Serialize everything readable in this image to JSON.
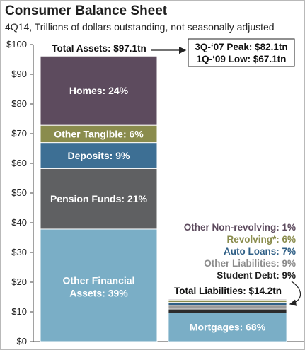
{
  "header": {
    "title": "Consumer Balance Sheet",
    "subtitle": "4Q14, Trillions of dollars outstanding, not seasonally adjusted"
  },
  "chart_data": {
    "type": "bar",
    "stacked": true,
    "title": "Consumer Balance Sheet",
    "subtitle": "4Q14, Trillions of dollars outstanding, not seasonally adjusted",
    "ylim": [
      0,
      100
    ],
    "y_ticks": [
      0,
      10,
      20,
      30,
      40,
      50,
      60,
      70,
      80,
      90,
      100
    ],
    "y_tick_labels": [
      "$0",
      "$10",
      "$20",
      "$30",
      "$40",
      "$50",
      "$60",
      "$70",
      "$80",
      "$90",
      "$100"
    ],
    "grid": false,
    "assets": {
      "total": 97.1,
      "total_label": "Total Assets: $97.1tn",
      "segments": [
        {
          "name": "Other Financial Assets",
          "label": "Other Financial Assets: 39%",
          "pct": 39,
          "color": "#7aaec6"
        },
        {
          "name": "Pension Funds",
          "label": "Pension Funds: 21%",
          "pct": 21,
          "color": "#5f6062"
        },
        {
          "name": "Deposits",
          "label": "Deposits: 9%",
          "pct": 9,
          "color": "#3d6f94"
        },
        {
          "name": "Other Tangible",
          "label": "Other Tangible: 6%",
          "pct": 6,
          "color": "#8a8c4d"
        },
        {
          "name": "Homes",
          "label": "Homes: 24%",
          "pct": 24,
          "color": "#5d4b5e"
        }
      ]
    },
    "liabilities": {
      "total": 14.2,
      "total_label": "Total Liabilities: $14.2tn",
      "segments": [
        {
          "name": "Mortgages",
          "label": "Mortgages: 68%",
          "pct": 68,
          "color": "#7aaec6"
        },
        {
          "name": "Student Debt",
          "label": "Student Debt: 9%",
          "pct": 9,
          "color": "#2b2b2b"
        },
        {
          "name": "Other Liabilities",
          "label": "Other Liabilities: 9%",
          "pct": 9,
          "color": "#9a9a9a"
        },
        {
          "name": "Auto Loans",
          "label": "Auto Loans: 7%",
          "pct": 7,
          "color": "#2f5f86"
        },
        {
          "name": "Revolving*",
          "label": "Revolving*: 6%",
          "pct": 6,
          "color": "#8a8c4d"
        },
        {
          "name": "Other Non-revolving",
          "label": "Other Non-revolving: 1%",
          "pct": 1,
          "color": "#5d4b5e"
        }
      ]
    },
    "peak_box": {
      "line1": "3Q-‘07 Peak: $82.1tn",
      "line2": "1Q-‘09 Low: $67.1tn"
    }
  }
}
